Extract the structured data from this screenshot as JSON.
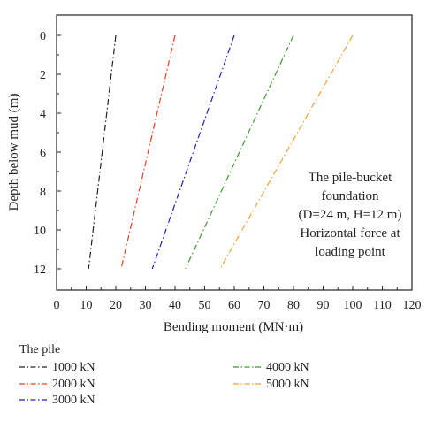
{
  "chart_data": {
    "type": "line",
    "xlabel": "Bending moment (MN·m)",
    "ylabel": "Depth below mud (m)",
    "xlim": [
      0,
      120
    ],
    "ylim": [
      0,
      13
    ],
    "y_inverted": true,
    "x_ticks": [
      0,
      10,
      20,
      30,
      40,
      50,
      60,
      70,
      80,
      90,
      100,
      110,
      120
    ],
    "y_ticks": [
      0,
      2,
      4,
      6,
      8,
      10,
      12
    ],
    "grid": false,
    "legend_title": "The pile",
    "legend_placement": "below",
    "annotation": [
      "The pile-bucket",
      "foundation",
      "(D=24 m, H=12 m)",
      "Horizontal force at",
      "loading point"
    ],
    "series": [
      {
        "name": "1000 kN",
        "color": "#222222",
        "dash": "dash-dot",
        "points": [
          [
            20,
            0
          ],
          [
            10.8,
            12
          ]
        ]
      },
      {
        "name": "2000 kN",
        "color": "#e8401c",
        "dash": "dash-dot",
        "points": [
          [
            40,
            0
          ],
          [
            21.8,
            12
          ]
        ]
      },
      {
        "name": "3000 kN",
        "color": "#1f1fb4",
        "dash": "dash-dot",
        "points": [
          [
            60,
            0
          ],
          [
            32.3,
            12
          ]
        ]
      },
      {
        "name": "4000 kN",
        "color": "#3a9a2a",
        "dash": "dash-dot",
        "points": [
          [
            80,
            0
          ],
          [
            43.5,
            12
          ]
        ]
      },
      {
        "name": "5000 kN",
        "color": "#f0a030",
        "dash": "dash-dot",
        "points": [
          [
            100,
            0
          ],
          [
            55.2,
            12
          ]
        ]
      }
    ]
  }
}
